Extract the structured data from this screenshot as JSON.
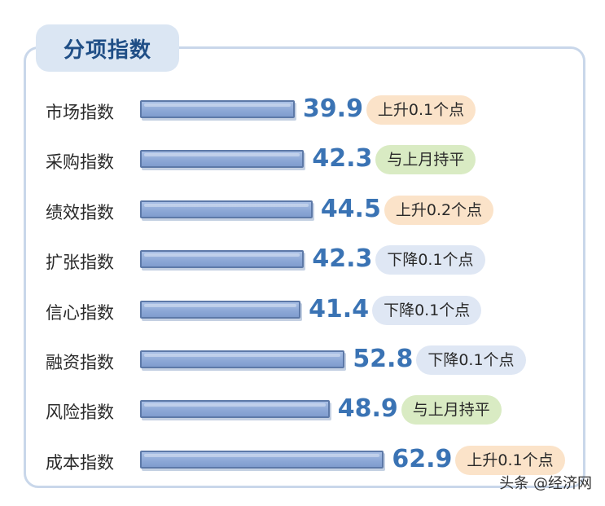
{
  "title": "分项指数",
  "watermark": "头条 @经济网",
  "colors": {
    "bar": "#8ea9d7",
    "value_text": "#3a73b4",
    "up_badge": "#fbe3c9",
    "flat_badge": "#d9ebc3",
    "down_badge": "#dfe7f4",
    "panel_border": "#c9d7ea"
  },
  "chart_data": {
    "type": "bar",
    "orientation": "horizontal",
    "title": "分项指数",
    "xlabel": "",
    "ylabel": "",
    "categories": [
      "市场指数",
      "采购指数",
      "绩效指数",
      "扩张指数",
      "信心指数",
      "融资指数",
      "风险指数",
      "成本指数"
    ],
    "values": [
      39.9,
      42.3,
      44.5,
      42.3,
      41.4,
      52.8,
      48.9,
      62.9
    ],
    "value_labels": [
      "39.9",
      "42.3",
      "44.5",
      "42.3",
      "41.4",
      "52.8",
      "48.9",
      "62.9"
    ],
    "changes": [
      "上升0.1个点",
      "与上月持平",
      "上升0.2个点",
      "下降0.1个点",
      "下降0.1个点",
      "下降0.1个点",
      "与上月持平",
      "上升0.1个点"
    ],
    "change_types": [
      "up",
      "flat",
      "up",
      "down",
      "down",
      "down",
      "flat",
      "up"
    ],
    "xlim": [
      0,
      62.9
    ],
    "grid": false
  }
}
